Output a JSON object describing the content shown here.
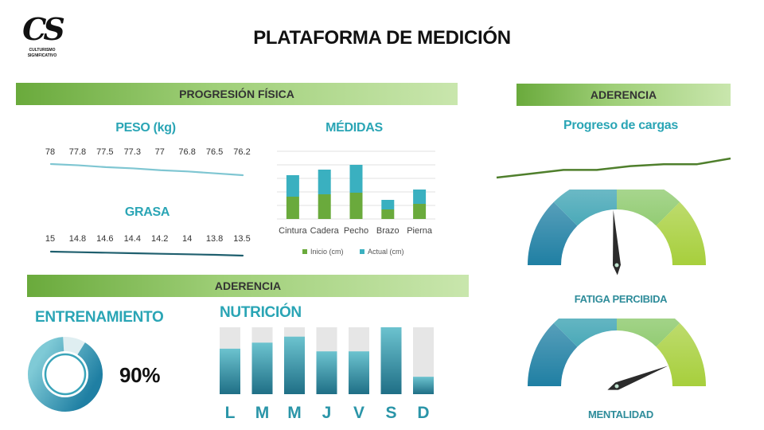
{
  "logo": {
    "monogram": "CS",
    "line1": "CULTURISMO",
    "line2": "SIGNIFICATIVO"
  },
  "header": {
    "title": "PLATAFORMA DE MEDICIÓN"
  },
  "sections": {
    "progresion": "PROGRESIÓN FÍSICA",
    "aderencia_top": "ADERENCIA",
    "aderencia_mid": "ADERENCIA"
  },
  "colors": {
    "green": "#6aaa3c",
    "teal": "#2aa5b5",
    "dark_teal": "#1f5f6e",
    "gray": "#e6e6e6"
  },
  "chart_data": [
    {
      "id": "peso",
      "type": "line",
      "title": "PESO (kg)",
      "values": [
        78,
        77.8,
        77.5,
        77.3,
        77,
        76.8,
        76.5,
        76.2
      ],
      "labels": [
        "78",
        "77.8",
        "77.5",
        "77.3",
        "77",
        "76.8",
        "76.5",
        "76.2"
      ]
    },
    {
      "id": "grasa",
      "type": "line",
      "title": "GRASA",
      "values": [
        15,
        14.8,
        14.6,
        14.4,
        14.2,
        14,
        13.8,
        13.5
      ],
      "labels": [
        "15",
        "14.8",
        "14.6",
        "14.4",
        "14.2",
        "14",
        "13.8",
        "13.5"
      ]
    },
    {
      "id": "medidas",
      "type": "bar",
      "stacked": true,
      "title": "MÉDIDAS",
      "categories": [
        "Cintura",
        "Cadera",
        "Pecho",
        "Brazo",
        "Pierna"
      ],
      "series": [
        {
          "name": "Inicio (cm)",
          "color": "#6aaa3c",
          "values": [
            28,
            31,
            33,
            12,
            19
          ]
        },
        {
          "name": "Actual (cm)",
          "color": "#3ab0c0",
          "values": [
            27,
            31,
            35,
            12,
            18
          ]
        }
      ],
      "ylim": [
        0,
        85
      ],
      "grid": true,
      "legend": "bottom"
    },
    {
      "id": "progreso",
      "type": "line",
      "title": "Progreso de cargas",
      "values": [
        10,
        12,
        14,
        14,
        16,
        17,
        17,
        20
      ]
    },
    {
      "id": "entrenamiento",
      "type": "pie",
      "title": "ENTRENAMIENTO",
      "value": 0.9,
      "label": "90%"
    },
    {
      "id": "nutricion",
      "type": "bar",
      "title": "NUTRICIÓN",
      "categories": [
        "L",
        "M",
        "M",
        "J",
        "V",
        "S",
        "D"
      ],
      "values": [
        0.68,
        0.77,
        0.86,
        0.64,
        0.64,
        1.0,
        0.26
      ]
    },
    {
      "id": "fatiga",
      "type": "gauge",
      "title": "FATIGA PERCIBIDA",
      "value": 0.48
    },
    {
      "id": "mentalidad",
      "type": "gauge",
      "title": "MENTALIDAD",
      "value": 0.88
    }
  ]
}
